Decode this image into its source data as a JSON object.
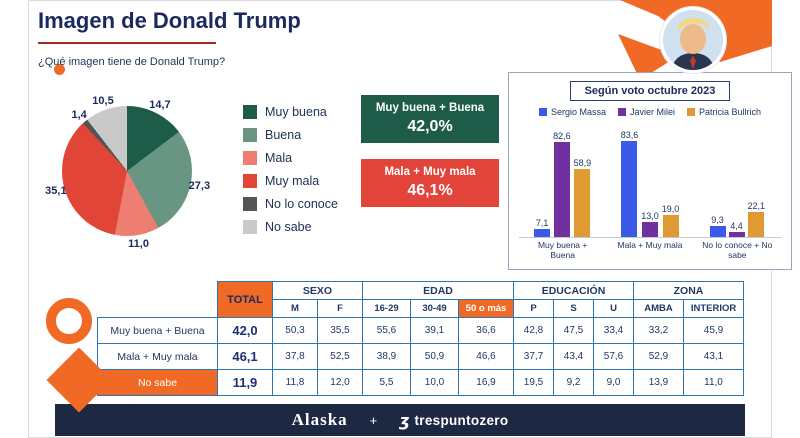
{
  "header": {
    "title": "Imagen de Donald Trump",
    "question": "¿Qué imagen tiene de Donald Trump?"
  },
  "colors": {
    "accent_orange": "#f06a25",
    "navy": "#1b2a5e",
    "positive_green": "#1e5b49",
    "negative_red": "#e2443a",
    "table_border_blue": "#2e75b6",
    "footer_navy": "#1d2942"
  },
  "summary_boxes": [
    {
      "label": "Muy buena + Buena",
      "value": "42,0%",
      "color": "#1e5b49"
    },
    {
      "label": "Mala + Muy mala",
      "value": "46,1%",
      "color": "#e2443a"
    }
  ],
  "chart_data": [
    {
      "type": "pie",
      "title": "¿Qué imagen tiene de Donald Trump?",
      "categories": [
        "Muy buena",
        "Buena",
        "Mala",
        "Muy mala",
        "No lo conoce",
        "No sabe"
      ],
      "values": [
        14.7,
        27.3,
        11.0,
        35.1,
        1.4,
        10.5
      ],
      "labels": [
        "14,7",
        "27,3",
        "11,0",
        "35,1",
        "1,4",
        "10,5"
      ],
      "colors": [
        "#1e5c4a",
        "#699682",
        "#ee7e72",
        "#e04538",
        "#555555",
        "#c9c9c9"
      ],
      "legend_position": "right"
    },
    {
      "type": "bar",
      "title": "Según voto octubre 2023",
      "categories": [
        "Muy buena + Buena",
        "Mala + Muy mala",
        "No lo conoce + No sabe"
      ],
      "series": [
        {
          "name": "Sergio Massa",
          "color": "#3c5ae8",
          "values": [
            7.1,
            83.6,
            9.3
          ],
          "labels": [
            "7,1",
            "83,6",
            "9,3"
          ]
        },
        {
          "name": "Javier Milei",
          "color": "#7030a0",
          "values": [
            82.6,
            13.0,
            4.4
          ],
          "labels": [
            "82,6",
            "13,0",
            "4,4"
          ]
        },
        {
          "name": "Patricia Bullrich",
          "color": "#e09a33",
          "values": [
            58.9,
            19.0,
            22.1
          ],
          "labels": [
            "58,9",
            "19,0",
            "22,1"
          ]
        }
      ],
      "ylim": [
        0,
        90
      ],
      "legend_position": "top"
    },
    {
      "type": "table",
      "corner": "",
      "total_header": "TOTAL",
      "groups": [
        {
          "label": "SEXO",
          "span": 2
        },
        {
          "label": "EDAD",
          "span": 3
        },
        {
          "label": "EDUCACIÓN",
          "span": 3
        },
        {
          "label": "ZONA",
          "span": 2
        }
      ],
      "sub_headers": [
        "M",
        "F",
        "16-29",
        "30-49",
        "50 o más",
        "P",
        "S",
        "U",
        "AMBA",
        "INTERIOR"
      ],
      "highlighted_subheader": "50 o más",
      "highlighted_row": "No sabe",
      "rows": [
        {
          "label": "Muy buena + Buena",
          "total": "42,0",
          "values": [
            "50,3",
            "35,5",
            "55,6",
            "39,1",
            "36,6",
            "42,8",
            "47,5",
            "33,4",
            "33,2",
            "45,9"
          ]
        },
        {
          "label": "Mala + Muy mala",
          "total": "46,1",
          "values": [
            "37,8",
            "52,5",
            "38,9",
            "50,9",
            "46,6",
            "37,7",
            "43,4",
            "57,6",
            "52,9",
            "43,1"
          ]
        },
        {
          "label": "No sabe",
          "total": "11,9",
          "values": [
            "11,8",
            "12,0",
            "5,5",
            "10,0",
            "16,9",
            "19,5",
            "9,2",
            "9,0",
            "13,9",
            "11,0"
          ]
        }
      ]
    }
  ],
  "footer": {
    "brand_alaska": "Alaska",
    "plus": "+",
    "tpz_glyph": "ʒ",
    "brand_tpz": "trespuntozero"
  }
}
